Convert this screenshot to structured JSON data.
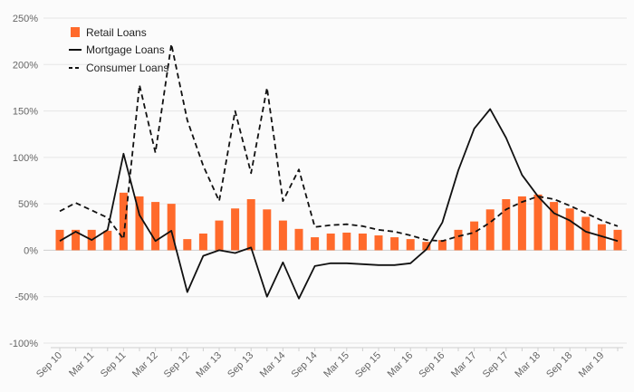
{
  "chart_data": {
    "type": "bar",
    "ylim": [
      -100,
      250
    ],
    "yticks": [
      -100,
      -50,
      0,
      50,
      100,
      150,
      200,
      250
    ],
    "ytick_labels": [
      "-100%",
      "-50%",
      "0%",
      "50%",
      "100%",
      "150%",
      "200%",
      "250%"
    ],
    "x": [
      "Sep 10",
      "Dec 10",
      "Mar 11",
      "Jun 11",
      "Sep 11",
      "Dec 11",
      "Mar 12",
      "Jun 12",
      "Sep 12",
      "Dec 12",
      "Mar 13",
      "Jun 13",
      "Sep 13",
      "Dec 13",
      "Mar 14",
      "Jun 14",
      "Sep 14",
      "Dec 14",
      "Mar 15",
      "Jun 15",
      "Sep 15",
      "Dec 15",
      "Mar 16",
      "Jun 16",
      "Sep 16",
      "Dec 16",
      "Mar 17",
      "Jun 17",
      "Sep 17",
      "Dec 17",
      "Mar 18",
      "Jun 18",
      "Sep 18",
      "Dec 18",
      "Mar 19",
      "Jun 19"
    ],
    "xtick_labels": [
      "Sep 10",
      "Mar 11",
      "Sep 11",
      "Mar 12",
      "Sep 12",
      "Mar 13",
      "Sep 13",
      "Mar 14",
      "Sep 14",
      "Mar 15",
      "Sep 15",
      "Mar 16",
      "Sep 16",
      "Mar 17",
      "Sep 17",
      "Mar 18",
      "Sep 18",
      "Mar 19"
    ],
    "grid": true,
    "legend_position": "top-left",
    "series": [
      {
        "name": "Retail Loans",
        "type": "bar",
        "color": "#ff6a2b",
        "values": [
          22,
          22,
          22,
          21,
          62,
          58,
          52,
          50,
          12,
          18,
          32,
          45,
          55,
          44,
          32,
          23,
          14,
          18,
          19,
          18,
          16,
          14,
          12,
          9,
          11,
          22,
          31,
          44,
          55,
          58,
          60,
          52,
          45,
          36,
          28,
          22
        ]
      },
      {
        "name": "Mortgage Loans",
        "type": "line",
        "color": "#111111",
        "dash": "solid",
        "values": [
          10,
          20,
          11,
          22,
          104,
          38,
          10,
          21,
          -45,
          -6,
          0,
          -3,
          3,
          -50,
          -13,
          -52,
          -17,
          -14,
          -14,
          -15,
          -16,
          -16,
          -14,
          1,
          30,
          86,
          131,
          152,
          121,
          81,
          58,
          40,
          32,
          20,
          15,
          10
        ]
      },
      {
        "name": "Consumer Loans",
        "type": "line",
        "color": "#111111",
        "dash": "dashed",
        "values": [
          42,
          51,
          43,
          35,
          12,
          178,
          105,
          222,
          140,
          91,
          53,
          150,
          83,
          175,
          53,
          87,
          25,
          27,
          28,
          26,
          22,
          20,
          16,
          11,
          10,
          15,
          19,
          30,
          44,
          52,
          58,
          55,
          48,
          40,
          32,
          26
        ]
      }
    ]
  }
}
